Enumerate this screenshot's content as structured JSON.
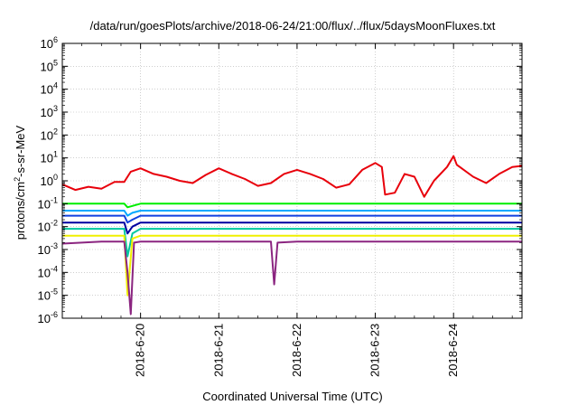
{
  "chart_data": {
    "type": "line",
    "title": "/data/run/goesPlots/archive/2018-06-24/21:00/flux/../flux/5daysMoonFluxes.txt",
    "xlabel": "Coordinated Universal Time (UTC)",
    "ylabel": {
      "prefix": "protons/cm",
      "sup": "2",
      "suffix": "-s-sr-MeV"
    },
    "xlim": [
      "2018-06-19T00:00",
      "2018-06-24T21:00"
    ],
    "ylim": [
      1e-06,
      1000000.0
    ],
    "y_scale": "log",
    "grid": true,
    "legend": "none",
    "x_ticks": [
      {
        "t": "2018-06-20T00:00",
        "label": "2018-6-20"
      },
      {
        "t": "2018-06-21T00:00",
        "label": "2018-6-21"
      },
      {
        "t": "2018-06-22T00:00",
        "label": "2018-6-22"
      },
      {
        "t": "2018-06-23T00:00",
        "label": "2018-6-23"
      },
      {
        "t": "2018-06-24T00:00",
        "label": "2018-6-24"
      }
    ],
    "y_ticks": [
      {
        "value": 1e-06,
        "base": "10",
        "exp": "-6"
      },
      {
        "value": 1e-05,
        "base": "10",
        "exp": "-5"
      },
      {
        "value": 0.0001,
        "base": "10",
        "exp": "-4"
      },
      {
        "value": 0.001,
        "base": "10",
        "exp": "-3"
      },
      {
        "value": 0.01,
        "base": "10",
        "exp": "-2"
      },
      {
        "value": 0.1,
        "base": "10",
        "exp": "-1"
      },
      {
        "value": 1,
        "base": "10",
        "exp": "0"
      },
      {
        "value": 10.0,
        "base": "10",
        "exp": "1"
      },
      {
        "value": 100.0,
        "base": "10",
        "exp": "2"
      },
      {
        "value": 1000.0,
        "base": "10",
        "exp": "3"
      },
      {
        "value": 10000.0,
        "base": "10",
        "exp": "4"
      },
      {
        "value": 100000.0,
        "base": "10",
        "exp": "5"
      },
      {
        "value": 1000000.0,
        "base": "10",
        "exp": "6"
      }
    ],
    "series": [
      {
        "color": "#e8000b",
        "points": [
          [
            "2018-06-19T00:00",
            0.7
          ],
          [
            "2018-06-19T04:00",
            0.4
          ],
          [
            "2018-06-19T08:00",
            0.55
          ],
          [
            "2018-06-19T12:00",
            0.45
          ],
          [
            "2018-06-19T16:00",
            0.9
          ],
          [
            "2018-06-19T19:00",
            0.9
          ],
          [
            "2018-06-19T21:00",
            2.5
          ],
          [
            "2018-06-20T00:00",
            3.5
          ],
          [
            "2018-06-20T04:00",
            2.0
          ],
          [
            "2018-06-20T08:00",
            1.5
          ],
          [
            "2018-06-20T12:00",
            1.0
          ],
          [
            "2018-06-20T16:00",
            0.8
          ],
          [
            "2018-06-20T20:00",
            1.8
          ],
          [
            "2018-06-21T00:00",
            3.5
          ],
          [
            "2018-06-21T04:00",
            2.0
          ],
          [
            "2018-06-21T08:00",
            1.2
          ],
          [
            "2018-06-21T12:00",
            0.6
          ],
          [
            "2018-06-21T16:00",
            0.8
          ],
          [
            "2018-06-21T20:00",
            2.0
          ],
          [
            "2018-06-22T00:00",
            3.0
          ],
          [
            "2018-06-22T04:00",
            2.0
          ],
          [
            "2018-06-22T08:00",
            1.2
          ],
          [
            "2018-06-22T12:00",
            0.5
          ],
          [
            "2018-06-22T16:00",
            0.7
          ],
          [
            "2018-06-22T20:00",
            3.0
          ],
          [
            "2018-06-23T00:00",
            6.0
          ],
          [
            "2018-06-23T02:00",
            4.0
          ],
          [
            "2018-06-23T03:00",
            0.25
          ],
          [
            "2018-06-23T06:00",
            0.3
          ],
          [
            "2018-06-23T09:00",
            2.0
          ],
          [
            "2018-06-23T12:00",
            1.5
          ],
          [
            "2018-06-23T15:00",
            0.2
          ],
          [
            "2018-06-23T18:00",
            1.0
          ],
          [
            "2018-06-23T22:00",
            4.0
          ],
          [
            "2018-06-24T00:00",
            12.0
          ],
          [
            "2018-06-24T01:00",
            5.0
          ],
          [
            "2018-06-24T06:00",
            1.5
          ],
          [
            "2018-06-24T10:00",
            0.8
          ],
          [
            "2018-06-24T14:00",
            2.0
          ],
          [
            "2018-06-24T18:00",
            4.0
          ],
          [
            "2018-06-24T21:00",
            4.5
          ]
        ]
      },
      {
        "color": "#00ee00",
        "points": [
          [
            "2018-06-19T00:00",
            0.1
          ],
          [
            "2018-06-19T19:00",
            0.1
          ],
          [
            "2018-06-19T20:00",
            0.07
          ],
          [
            "2018-06-19T21:30",
            0.08
          ],
          [
            "2018-06-20T00:00",
            0.1
          ],
          [
            "2018-06-20T12:00",
            0.1
          ],
          [
            "2018-06-21T00:00",
            0.1
          ],
          [
            "2018-06-21T12:00",
            0.1
          ],
          [
            "2018-06-22T00:00",
            0.1
          ],
          [
            "2018-06-22T12:00",
            0.1
          ],
          [
            "2018-06-23T00:00",
            0.1
          ],
          [
            "2018-06-23T12:00",
            0.1
          ],
          [
            "2018-06-24T00:00",
            0.1
          ],
          [
            "2018-06-24T21:00",
            0.1
          ]
        ]
      },
      {
        "color": "#00a8ff",
        "points": [
          [
            "2018-06-19T00:00",
            0.05
          ],
          [
            "2018-06-19T19:00",
            0.05
          ],
          [
            "2018-06-19T20:00",
            0.03
          ],
          [
            "2018-06-19T21:30",
            0.04
          ],
          [
            "2018-06-20T00:00",
            0.05
          ],
          [
            "2018-06-21T00:00",
            0.05
          ],
          [
            "2018-06-22T00:00",
            0.05
          ],
          [
            "2018-06-23T00:00",
            0.05
          ],
          [
            "2018-06-24T00:00",
            0.05
          ],
          [
            "2018-06-24T21:00",
            0.05
          ]
        ]
      },
      {
        "color": "#1040e0",
        "points": [
          [
            "2018-06-19T00:00",
            0.03
          ],
          [
            "2018-06-19T19:00",
            0.03
          ],
          [
            "2018-06-19T20:00",
            0.015
          ],
          [
            "2018-06-19T21:30",
            0.02
          ],
          [
            "2018-06-20T00:00",
            0.03
          ],
          [
            "2018-06-21T00:00",
            0.03
          ],
          [
            "2018-06-22T00:00",
            0.03
          ],
          [
            "2018-06-23T00:00",
            0.03
          ],
          [
            "2018-06-24T00:00",
            0.03
          ],
          [
            "2018-06-24T21:00",
            0.03
          ]
        ]
      },
      {
        "color": "#0000a0",
        "points": [
          [
            "2018-06-19T00:00",
            0.015
          ],
          [
            "2018-06-19T19:00",
            0.015
          ],
          [
            "2018-06-19T20:00",
            0.005
          ],
          [
            "2018-06-19T21:30",
            0.01
          ],
          [
            "2018-06-20T00:00",
            0.015
          ],
          [
            "2018-06-21T00:00",
            0.015
          ],
          [
            "2018-06-22T00:00",
            0.015
          ],
          [
            "2018-06-23T00:00",
            0.015
          ],
          [
            "2018-06-24T00:00",
            0.015
          ],
          [
            "2018-06-24T21:00",
            0.015
          ]
        ]
      },
      {
        "color": "#00c8a0",
        "points": [
          [
            "2018-06-19T00:00",
            0.008
          ],
          [
            "2018-06-19T19:00",
            0.008
          ],
          [
            "2018-06-19T20:00",
            0.0005
          ],
          [
            "2018-06-19T21:30",
            0.005
          ],
          [
            "2018-06-20T00:00",
            0.008
          ],
          [
            "2018-06-21T00:00",
            0.008
          ],
          [
            "2018-06-22T00:00",
            0.008
          ],
          [
            "2018-06-23T00:00",
            0.008
          ],
          [
            "2018-06-24T00:00",
            0.008
          ],
          [
            "2018-06-24T21:00",
            0.008
          ]
        ]
      },
      {
        "color": "#f0f000",
        "points": [
          [
            "2018-06-19T00:00",
            0.004
          ],
          [
            "2018-06-19T19:00",
            0.004
          ],
          [
            "2018-06-19T20:00",
            1e-05
          ],
          [
            "2018-06-19T21:30",
            0.003
          ],
          [
            "2018-06-20T00:00",
            0.004
          ],
          [
            "2018-06-21T00:00",
            0.004
          ],
          [
            "2018-06-22T00:00",
            0.004
          ],
          [
            "2018-06-23T00:00",
            0.004
          ],
          [
            "2018-06-24T00:00",
            0.004
          ],
          [
            "2018-06-24T21:00",
            0.004
          ]
        ]
      },
      {
        "color": "#8b2580",
        "points": [
          [
            "2018-06-19T00:00",
            0.0018
          ],
          [
            "2018-06-19T12:00",
            0.0022
          ],
          [
            "2018-06-19T19:00",
            0.0022
          ],
          [
            "2018-06-19T20:00",
            0.0001
          ],
          [
            "2018-06-19T21:00",
            1.5e-06
          ],
          [
            "2018-06-19T22:00",
            0.002
          ],
          [
            "2018-06-20T00:00",
            0.0022
          ],
          [
            "2018-06-21T00:00",
            0.0022
          ],
          [
            "2018-06-21T16:00",
            0.0022
          ],
          [
            "2018-06-21T17:00",
            3e-05
          ],
          [
            "2018-06-21T18:00",
            0.002
          ],
          [
            "2018-06-22T00:00",
            0.0022
          ],
          [
            "2018-06-23T00:00",
            0.0022
          ],
          [
            "2018-06-24T00:00",
            0.0022
          ],
          [
            "2018-06-24T21:00",
            0.0022
          ]
        ]
      }
    ]
  }
}
